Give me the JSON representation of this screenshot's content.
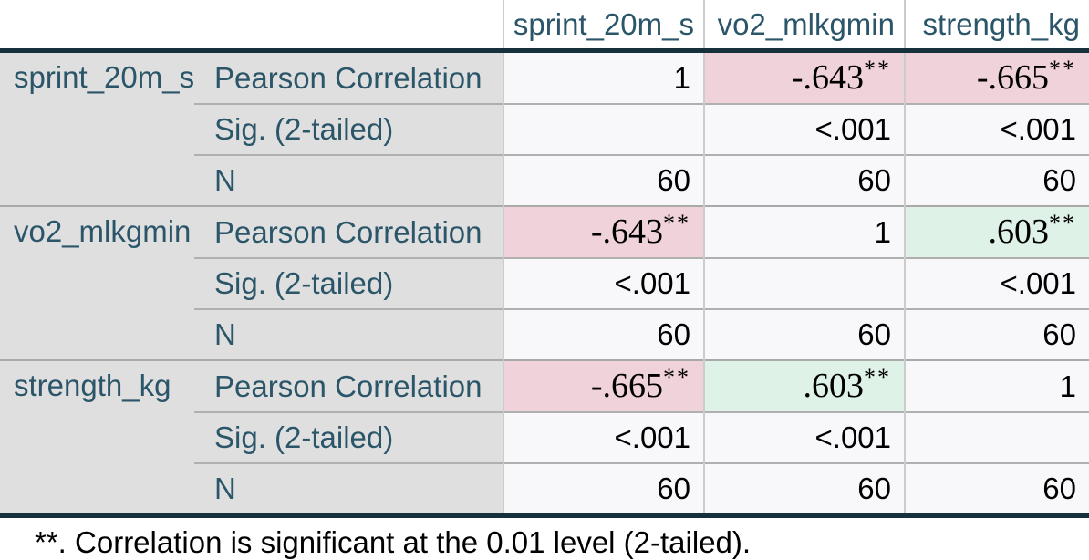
{
  "chart_data": {
    "type": "table",
    "variables": [
      "sprint_20m_s",
      "vo2_mlkgmin",
      "strength_kg"
    ],
    "measures": [
      "Pearson Correlation",
      "Sig. (2-tailed)",
      "N"
    ],
    "pearson_correlation": [
      [
        1,
        -0.643,
        -0.665
      ],
      [
        -0.643,
        1,
        0.603
      ],
      [
        -0.665,
        0.603,
        1
      ]
    ],
    "sig_2_tailed": [
      [
        null,
        "<.001",
        "<.001"
      ],
      [
        "<.001",
        null,
        "<.001"
      ],
      [
        "<.001",
        "<.001",
        null
      ]
    ],
    "n": [
      [
        60,
        60,
        60
      ],
      [
        60,
        60,
        60
      ],
      [
        60,
        60,
        60
      ]
    ],
    "footnote": "**. Correlation is significant at the 0.01 level (2-tailed)."
  },
  "table": {
    "columns": [
      "sprint_20m_s",
      "vo2_mlkgmin",
      "strength_kg"
    ],
    "labels": {
      "pearson": "Pearson Correlation",
      "sig": "Sig. (2-tailed)",
      "n": "N"
    },
    "groups": [
      {
        "name": "sprint_20m_s",
        "pearson": [
          {
            "v": "1",
            "sup": ""
          },
          {
            "v": "-.643",
            "sup": "**"
          },
          {
            "v": "-.665",
            "sup": "**"
          }
        ],
        "sig": [
          "",
          "<.001",
          "<.001"
        ],
        "n": [
          "60",
          "60",
          "60"
        ]
      },
      {
        "name": "vo2_mlkgmin",
        "pearson": [
          {
            "v": "-.643",
            "sup": "**"
          },
          {
            "v": "1",
            "sup": ""
          },
          {
            "v": ".603",
            "sup": "**"
          }
        ],
        "sig": [
          "<.001",
          "",
          "<.001"
        ],
        "n": [
          "60",
          "60",
          "60"
        ]
      },
      {
        "name": "strength_kg",
        "pearson": [
          {
            "v": "-.665",
            "sup": "**"
          },
          {
            "v": ".603",
            "sup": "**"
          },
          {
            "v": "1",
            "sup": ""
          }
        ],
        "sig": [
          "<.001",
          "<.001",
          ""
        ],
        "n": [
          "60",
          "60",
          "60"
        ]
      }
    ],
    "footnote": "**. Correlation is significant at the 0.01 level (2-tailed)."
  },
  "colors": {
    "header_text": "#2b5669",
    "stub_background": "#dfdfdf",
    "cell_background": "#f8f8fa",
    "highlight_negative": "#f0d2da",
    "highlight_positive": "#dff2e8",
    "border_dark": "#16303c",
    "grid_line": "#b0b0b0"
  }
}
